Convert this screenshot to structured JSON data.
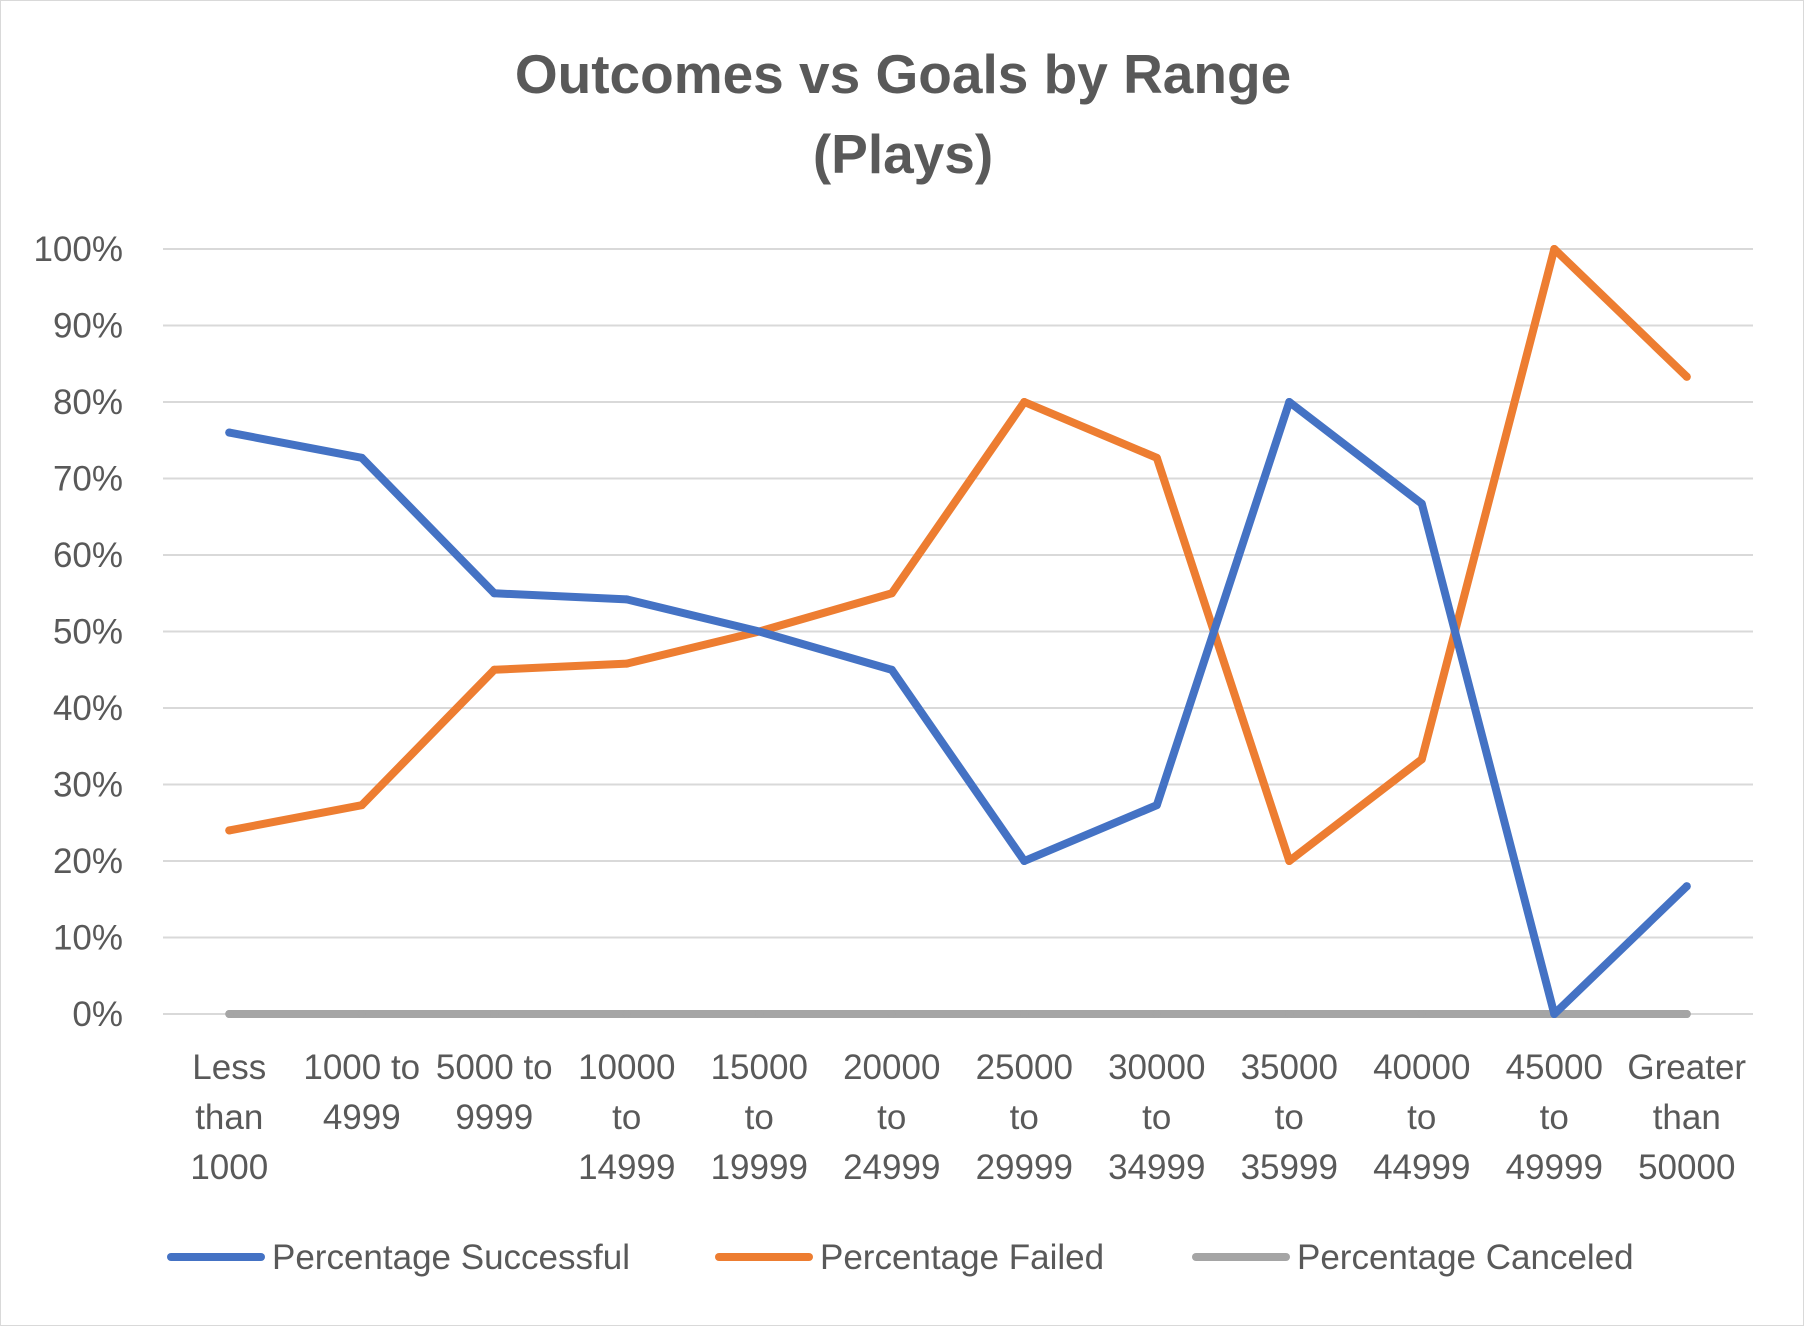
{
  "chart_data": {
    "type": "line",
    "title_lines": [
      "Outcomes vs Goals by Range",
      "(Plays)"
    ],
    "categories": [
      [
        "Less",
        "than",
        "1000"
      ],
      [
        "1000 to",
        "4999"
      ],
      [
        "5000 to",
        "9999"
      ],
      [
        "10000",
        "to",
        "14999"
      ],
      [
        "15000",
        "to",
        "19999"
      ],
      [
        "20000",
        "to",
        "24999"
      ],
      [
        "25000",
        "to",
        "29999"
      ],
      [
        "30000",
        "to",
        "34999"
      ],
      [
        "35000",
        "to",
        "35999"
      ],
      [
        "40000",
        "to",
        "44999"
      ],
      [
        "45000",
        "to",
        "49999"
      ],
      [
        "Greater",
        "than",
        "50000"
      ]
    ],
    "series": [
      {
        "name": "Percentage Successful",
        "color": "#4472c4",
        "values": [
          0.76,
          0.727,
          0.55,
          0.542,
          0.5,
          0.45,
          0.2,
          0.273,
          0.8,
          0.667,
          0.0,
          0.167
        ]
      },
      {
        "name": "Percentage Failed",
        "color": "#ed7d31",
        "values": [
          0.24,
          0.273,
          0.45,
          0.458,
          0.5,
          0.55,
          0.8,
          0.727,
          0.2,
          0.333,
          1.0,
          0.833
        ]
      },
      {
        "name": "Percentage Canceled",
        "color": "#a5a5a5",
        "values": [
          0,
          0,
          0,
          0,
          0,
          0,
          0,
          0,
          0,
          0,
          0,
          0
        ]
      }
    ],
    "y_ticks": [
      "0%",
      "10%",
      "20%",
      "30%",
      "40%",
      "50%",
      "60%",
      "70%",
      "80%",
      "90%",
      "100%"
    ],
    "ylim": [
      0,
      1
    ],
    "grid": true,
    "legend_position": "bottom",
    "gridline_color": "#d9d9d9",
    "text_color": "#595959"
  }
}
